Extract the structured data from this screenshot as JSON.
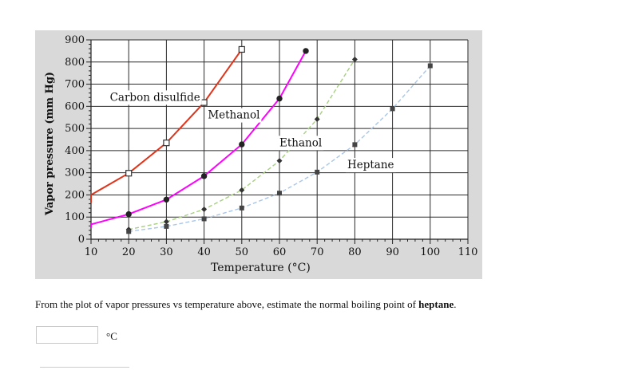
{
  "chart_data": {
    "type": "line",
    "title": "",
    "xlabel": "Temperature (°C)",
    "ylabel": "Vapor pressure (mm Hg)",
    "xlim": [
      10,
      110
    ],
    "ylim": [
      0,
      900
    ],
    "xticks": [
      10,
      20,
      30,
      40,
      50,
      60,
      70,
      80,
      90,
      100,
      110
    ],
    "yticks": [
      0,
      100,
      200,
      300,
      400,
      500,
      600,
      700,
      800,
      900
    ],
    "grid": true,
    "series": [
      {
        "name": "Carbon disulfide",
        "color": "#e0331a",
        "marker": "open-square",
        "x": [
          10,
          20,
          30,
          40,
          50
        ],
        "y": [
          200,
          298,
          435,
          617,
          857
        ]
      },
      {
        "name": "Methanol",
        "color": "#ff00ff",
        "marker": "filled-circle",
        "x": [
          10,
          20,
          30,
          40,
          50,
          60,
          67
        ],
        "y": [
          67,
          113,
          179,
          285,
          428,
          635,
          850
        ]
      },
      {
        "name": "Ethanol",
        "color": "#a8cf80",
        "marker": "filled-diamond",
        "x": [
          20,
          30,
          40,
          50,
          60,
          70,
          80
        ],
        "y": [
          44,
          79,
          135,
          222,
          354,
          542,
          812
        ]
      },
      {
        "name": "Heptane",
        "color": "#a9c6e8",
        "marker": "filled-square",
        "x": [
          20,
          30,
          40,
          50,
          60,
          70,
          80,
          90,
          100
        ],
        "y": [
          35,
          58,
          92,
          141,
          208,
          303,
          427,
          589,
          783
        ]
      }
    ],
    "annotations": [
      {
        "text": "Carbon disulfide",
        "series": "Carbon disulfide"
      },
      {
        "text": "Methanol",
        "series": "Methanol"
      },
      {
        "text": "Ethanol",
        "series": "Ethanol"
      },
      {
        "text": "Heptane",
        "series": "Heptane"
      }
    ]
  },
  "question": {
    "prefix": "From the plot of vapor pressures vs temperature above, estimate the normal boiling point of ",
    "bold": "heptane",
    "suffix": "."
  },
  "answer": {
    "value": "",
    "unit": "°C"
  }
}
